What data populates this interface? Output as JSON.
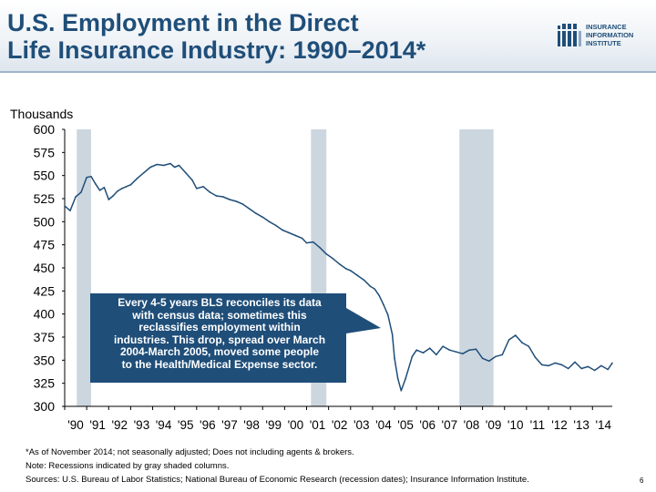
{
  "title": {
    "line1": "U.S. Employment in the Direct",
    "line2": "Life Insurance Industry: 1990–2014*"
  },
  "logo": {
    "line1": "INSURANCE",
    "line2": "INFORMATION",
    "line3": "INSTITUTE",
    "color": "#1f4e79"
  },
  "units_label": "Thousands",
  "callout": {
    "text": "Every 4-5 years BLS reconciles its data\nwith census data; sometimes this\nreclassifies employment within\nindustries. This drop, spread over March\n2004-March 2005, moved some people\nto the Health/Medical Expense sector.",
    "color": "#1f4e79"
  },
  "footnotes": [
    "*As of November 2014; not seasonally adjusted; Does not including agents & brokers.",
    "Note: Recessions indicated by gray shaded columns.",
    "Sources: U.S. Bureau of Labor Statistics;  National Bureau of Economic Research (recession dates); Insurance Information Institute."
  ],
  "page_number": "6",
  "chart_data": {
    "type": "line",
    "title": "U.S. Employment in the Direct Life Insurance Industry: 1990–2014*",
    "ylabel": "Thousands",
    "xlabel": "",
    "ylim": [
      300,
      600
    ],
    "y_ticks": [
      600,
      575,
      550,
      525,
      500,
      475,
      450,
      425,
      400,
      375,
      350,
      325,
      300
    ],
    "x_range": [
      1990.0,
      2014.9
    ],
    "x_ticks": [
      {
        "year": 1990,
        "label": "'90"
      },
      {
        "year": 1991,
        "label": "'91"
      },
      {
        "year": 1992,
        "label": "'92"
      },
      {
        "year": 1993,
        "label": "'93"
      },
      {
        "year": 1994,
        "label": "'94"
      },
      {
        "year": 1995,
        "label": "'95"
      },
      {
        "year": 1996,
        "label": "'96"
      },
      {
        "year": 1997,
        "label": "'97"
      },
      {
        "year": 1998,
        "label": "'98"
      },
      {
        "year": 1999,
        "label": "'99"
      },
      {
        "year": 2000,
        "label": "'00"
      },
      {
        "year": 2001,
        "label": "'01"
      },
      {
        "year": 2002,
        "label": "'02"
      },
      {
        "year": 2003,
        "label": "'03"
      },
      {
        "year": 2004,
        "label": "'04"
      },
      {
        "year": 2005,
        "label": "'05"
      },
      {
        "year": 2006,
        "label": "'06"
      },
      {
        "year": 2007,
        "label": "'07"
      },
      {
        "year": 2008,
        "label": "'08"
      },
      {
        "year": 2009,
        "label": "'09"
      },
      {
        "year": 2010,
        "label": "'10"
      },
      {
        "year": 2011,
        "label": "'11"
      },
      {
        "year": 2012,
        "label": "'12"
      },
      {
        "year": 2013,
        "label": "'13"
      },
      {
        "year": 2014,
        "label": "'14"
      }
    ],
    "recessions": [
      {
        "start": 1990.55,
        "end": 1991.2
      },
      {
        "start": 2001.2,
        "end": 2001.9
      },
      {
        "start": 2007.95,
        "end": 2009.5
      }
    ],
    "recession_color": "#ccd6df",
    "line_color": "#1f4e79",
    "grid": false,
    "series": [
      {
        "name": "Direct life insurance employment",
        "x": [
          1990.0,
          1990.25,
          1990.5,
          1990.75,
          1991.0,
          1991.2,
          1991.4,
          1991.6,
          1991.8,
          1992.0,
          1992.2,
          1992.4,
          1992.6,
          1992.8,
          1993.0,
          1993.3,
          1993.6,
          1993.9,
          1994.2,
          1994.5,
          1994.8,
          1995.0,
          1995.2,
          1995.5,
          1995.8,
          1996.0,
          1996.3,
          1996.6,
          1996.9,
          1997.2,
          1997.5,
          1997.8,
          1998.1,
          1998.4,
          1998.7,
          1999.0,
          1999.3,
          1999.6,
          1999.9,
          2000.2,
          2000.5,
          2000.8,
          2001.0,
          2001.3,
          2001.6,
          2001.9,
          2002.2,
          2002.5,
          2002.8,
          2003.0,
          2003.3,
          2003.6,
          2003.9,
          2004.1,
          2004.3,
          2004.5,
          2004.7,
          2004.9,
          2005.0,
          2005.15,
          2005.3,
          2005.5,
          2005.8,
          2006.0,
          2006.3,
          2006.6,
          2006.9,
          2007.2,
          2007.5,
          2007.8,
          2008.1,
          2008.4,
          2008.7,
          2009.0,
          2009.3,
          2009.6,
          2009.9,
          2010.2,
          2010.5,
          2010.8,
          2011.1,
          2011.4,
          2011.7,
          2012.0,
          2012.3,
          2012.6,
          2012.9,
          2013.2,
          2013.5,
          2013.8,
          2014.1,
          2014.4,
          2014.7,
          2014.9
        ],
        "values": [
          517,
          512,
          527,
          532,
          548,
          549,
          541,
          534,
          537,
          524,
          528,
          533,
          536,
          538,
          540,
          547,
          553,
          559,
          562,
          561,
          563,
          559,
          561,
          553,
          545,
          536,
          538,
          532,
          528,
          527,
          524,
          522,
          519,
          514,
          509,
          505,
          500,
          496,
          491,
          488,
          485,
          482,
          477,
          478,
          472,
          465,
          460,
          454,
          449,
          447,
          442,
          437,
          430,
          427,
          420,
          410,
          399,
          378,
          352,
          330,
          317,
          330,
          354,
          361,
          358,
          363,
          356,
          365,
          361,
          359,
          357,
          361,
          362,
          352,
          349,
          354,
          356,
          372,
          377,
          369,
          365,
          353,
          345,
          344,
          347,
          345,
          341,
          348,
          341,
          343,
          339,
          344,
          340,
          347
        ]
      }
    ]
  }
}
